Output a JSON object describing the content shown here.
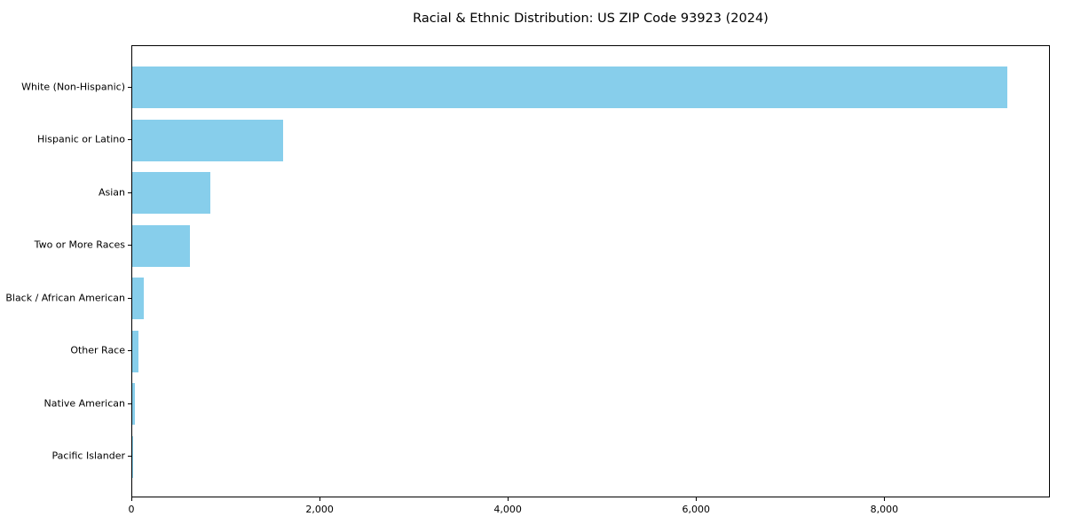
{
  "chart_data": {
    "type": "bar",
    "orientation": "horizontal",
    "title": "Racial & Ethnic Distribution: US ZIP Code 93923 (2024)",
    "xlabel": "",
    "ylabel": "",
    "categories": [
      "White (Non-Hispanic)",
      "Hispanic or Latino",
      "Asian",
      "Two or More Races",
      "Black / African American",
      "Other Race",
      "Native American",
      "Pacific Islander"
    ],
    "values": [
      9300,
      1600,
      830,
      610,
      120,
      70,
      30,
      5
    ],
    "xlim": [
      0,
      9760
    ],
    "x_ticks": [
      {
        "value": 0,
        "label": "0"
      },
      {
        "value": 2000,
        "label": "2,000"
      },
      {
        "value": 4000,
        "label": "4,000"
      },
      {
        "value": 6000,
        "label": "6,000"
      },
      {
        "value": 8000,
        "label": "8,000"
      }
    ],
    "bar_color": "#87CEEB",
    "grid": false,
    "legend": null,
    "background_color": "#ffffff",
    "spine_color": "#000000"
  }
}
